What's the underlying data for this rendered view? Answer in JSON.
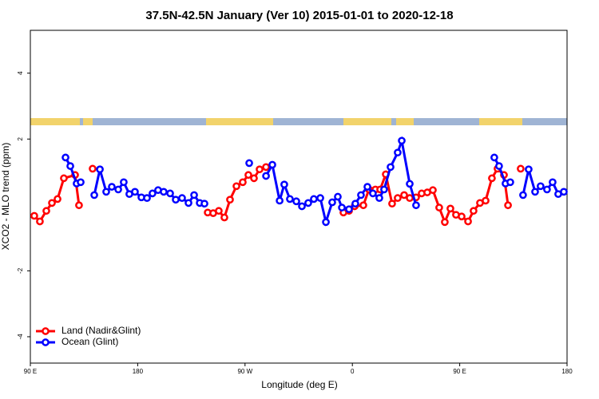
{
  "chart_data": {
    "type": "line",
    "title": "37.5N-42.5N January (Ver 10)   2015-01-01 to 2020-12-18",
    "x_label": "Longitude (deg E)",
    "y_label": "XCO2 - MLO trend (ppm)",
    "xlim": [
      90,
      540
    ],
    "ylim": [
      -4.8,
      5.3
    ],
    "xticks": [
      {
        "value": 90,
        "label": "90 E"
      },
      {
        "value": 180,
        "label": "180"
      },
      {
        "value": 270,
        "label": "90 W"
      },
      {
        "value": 360,
        "label": "0"
      },
      {
        "value": 450,
        "label": "90 E"
      },
      {
        "value": 540,
        "label": "180"
      }
    ],
    "yticks": [
      -4,
      -2,
      2,
      4
    ],
    "legend": "bottom-left",
    "series": [
      {
        "name": "Land (Nadir&Glint)",
        "color": "#ff0000",
        "x": [
          93.3,
          98.0,
          103.4,
          108.1,
          112.8,
          118.1,
          127.5,
          130.8,
          null,
          142.2,
          null,
          238.7,
          243.3,
          248.0,
          252.7,
          257.4,
          262.8,
          268.1,
          272.8,
          277.5,
          282.2,
          287.6,
          null,
          352.5,
          357.2,
          361.9,
          369.2,
          373.9,
          379.3,
          383.3,
          388.0,
          393.3,
          398.0,
          403.4,
          408.1,
          413.4,
          418.1,
          422.8,
          427.5,
          432.8,
          437.5,
          442.2,
          446.9,
          451.6,
          457.0,
          461.6,
          467.0,
          471.7,
          477.0,
          481.7,
          487.1,
          490.5,
          null,
          501.1
        ],
        "values": [
          -0.33,
          -0.5,
          -0.18,
          0.06,
          0.18,
          0.81,
          0.91,
          -0.01,
          null,
          1.1,
          null,
          -0.23,
          -0.25,
          -0.18,
          -0.38,
          0.16,
          0.57,
          0.69,
          0.91,
          0.81,
          1.08,
          1.15,
          null,
          -0.23,
          -0.18,
          -0.04,
          -0.01,
          0.47,
          0.47,
          0.47,
          0.93,
          0.04,
          0.21,
          0.3,
          0.21,
          0.23,
          0.35,
          0.38,
          0.45,
          -0.08,
          -0.52,
          -0.11,
          -0.3,
          -0.35,
          -0.5,
          -0.18,
          0.06,
          0.13,
          0.81,
          1.1,
          0.91,
          -0.01,
          null,
          1.1
        ]
      },
      {
        "name": "Ocean (Glint)",
        "color": "#0000ff",
        "x": [
          119.5,
          123.5,
          128.8,
          132.2,
          null,
          143.6,
          148.3,
          153.6,
          158.3,
          163.7,
          168.3,
          173.0,
          177.7,
          183.1,
          187.8,
          192.4,
          197.1,
          201.8,
          207.2,
          211.9,
          217.2,
          222.6,
          227.3,
          232.0,
          236.0,
          null,
          273.5,
          null,
          287.6,
          292.9,
          299.0,
          302.9,
          307.6,
          313.0,
          317.7,
          323.0,
          327.7,
          333.1,
          337.8,
          343.1,
          347.8,
          351.2,
          357.2,
          362.5,
          367.2,
          372.6,
          377.2,
          382.6,
          386.6,
          392.0,
          398.0,
          401.4,
          408.1,
          413.4,
          null,
          479.0,
          483.0,
          488.4,
          492.4,
          null,
          503.1,
          507.8,
          513.2,
          517.8,
          523.2,
          527.9,
          532.6,
          537.3
        ],
        "values": [
          1.44,
          1.18,
          0.65,
          0.69,
          null,
          0.3,
          1.08,
          0.4,
          0.55,
          0.47,
          0.69,
          0.33,
          0.4,
          0.23,
          0.21,
          0.35,
          0.45,
          0.4,
          0.35,
          0.16,
          0.21,
          0.06,
          0.3,
          0.06,
          0.04,
          null,
          1.27,
          null,
          0.88,
          1.22,
          0.13,
          0.62,
          0.18,
          0.11,
          -0.04,
          0.06,
          0.18,
          0.21,
          -0.52,
          0.08,
          0.25,
          -0.08,
          -0.13,
          0.04,
          0.3,
          0.55,
          0.35,
          0.21,
          0.47,
          1.15,
          1.59,
          1.95,
          0.64,
          -0.01,
          null,
          1.44,
          1.18,
          0.65,
          0.69,
          null,
          0.3,
          1.08,
          0.4,
          0.57,
          0.47,
          0.69,
          0.33,
          0.4
        ]
      }
    ]
  }
}
